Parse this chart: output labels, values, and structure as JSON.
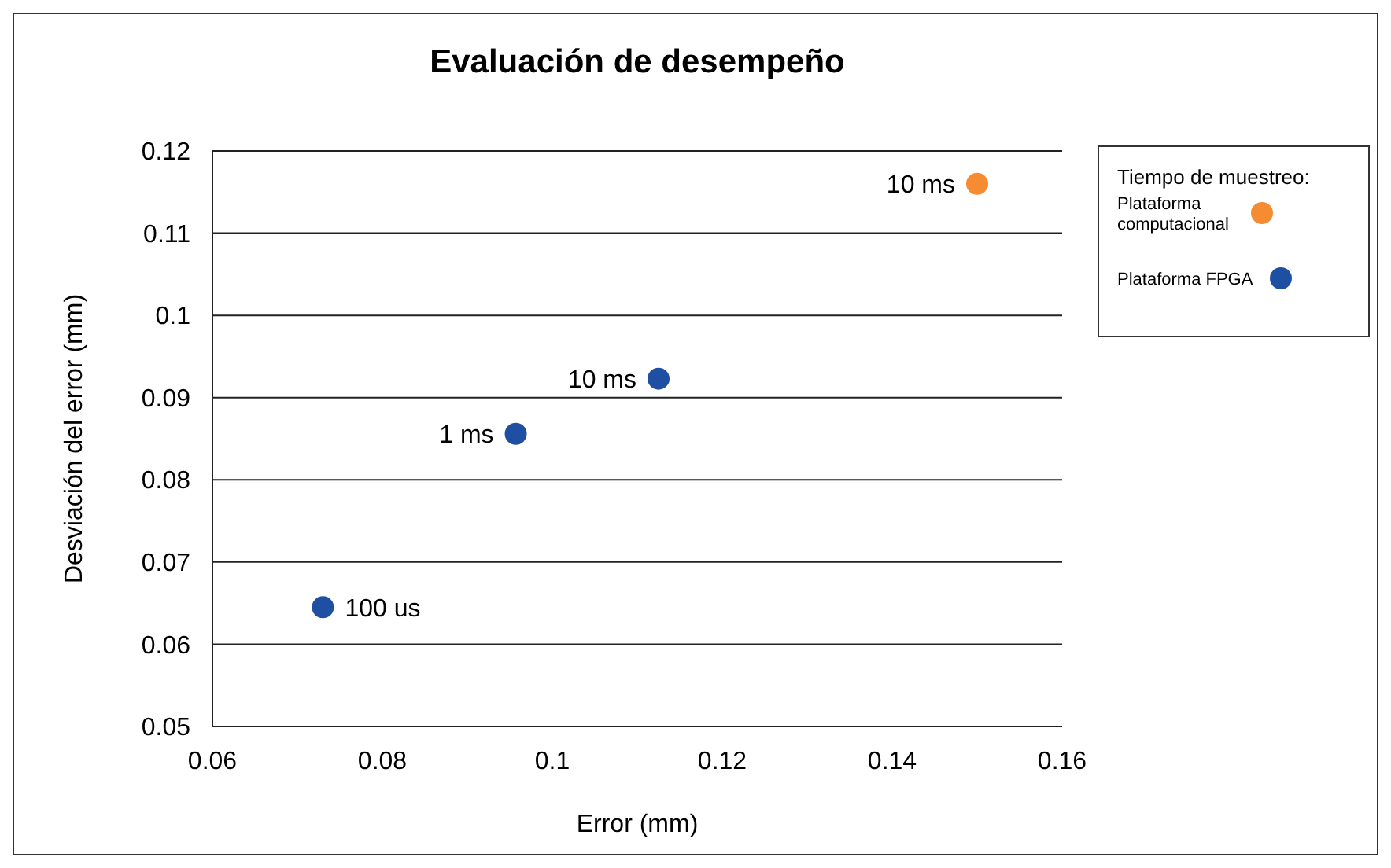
{
  "chart_data": {
    "type": "scatter",
    "title": "Evaluación de desempeño",
    "xlabel": "Error (mm)",
    "ylabel": "Desviación del error (mm)",
    "legend_title": "Tiempo de muestreo:",
    "legend": "right",
    "grid": "y",
    "marker": "circle",
    "xlim": [
      0.06,
      0.16
    ],
    "xticks": [
      0.06,
      0.08,
      0.1,
      0.12,
      0.14,
      0.16
    ],
    "ylim": [
      0.05,
      0.12
    ],
    "yticks": [
      0.05,
      0.06,
      0.07,
      0.08,
      0.09,
      0.1,
      0.11,
      0.12
    ],
    "series": [
      {
        "name": "Plataforma computacional",
        "color": "#f58c32",
        "x": [
          0.15
        ],
        "values": [
          0.116
        ]
      },
      {
        "name": "Plataforma FPGA",
        "color": "#1f4fa3",
        "x": [
          0.1125,
          0.0957,
          0.073
        ],
        "values": [
          0.0923,
          0.0856,
          0.0645
        ]
      }
    ],
    "annotations": [
      {
        "text": "10 ms",
        "x": 0.15,
        "y": 0.116
      },
      {
        "text": "10 ms",
        "x": 0.1125,
        "y": 0.0923
      },
      {
        "text": "1 ms",
        "x": 0.0957,
        "y": 0.0856
      },
      {
        "text": "100 us",
        "x": 0.073,
        "y": 0.0645
      }
    ]
  }
}
